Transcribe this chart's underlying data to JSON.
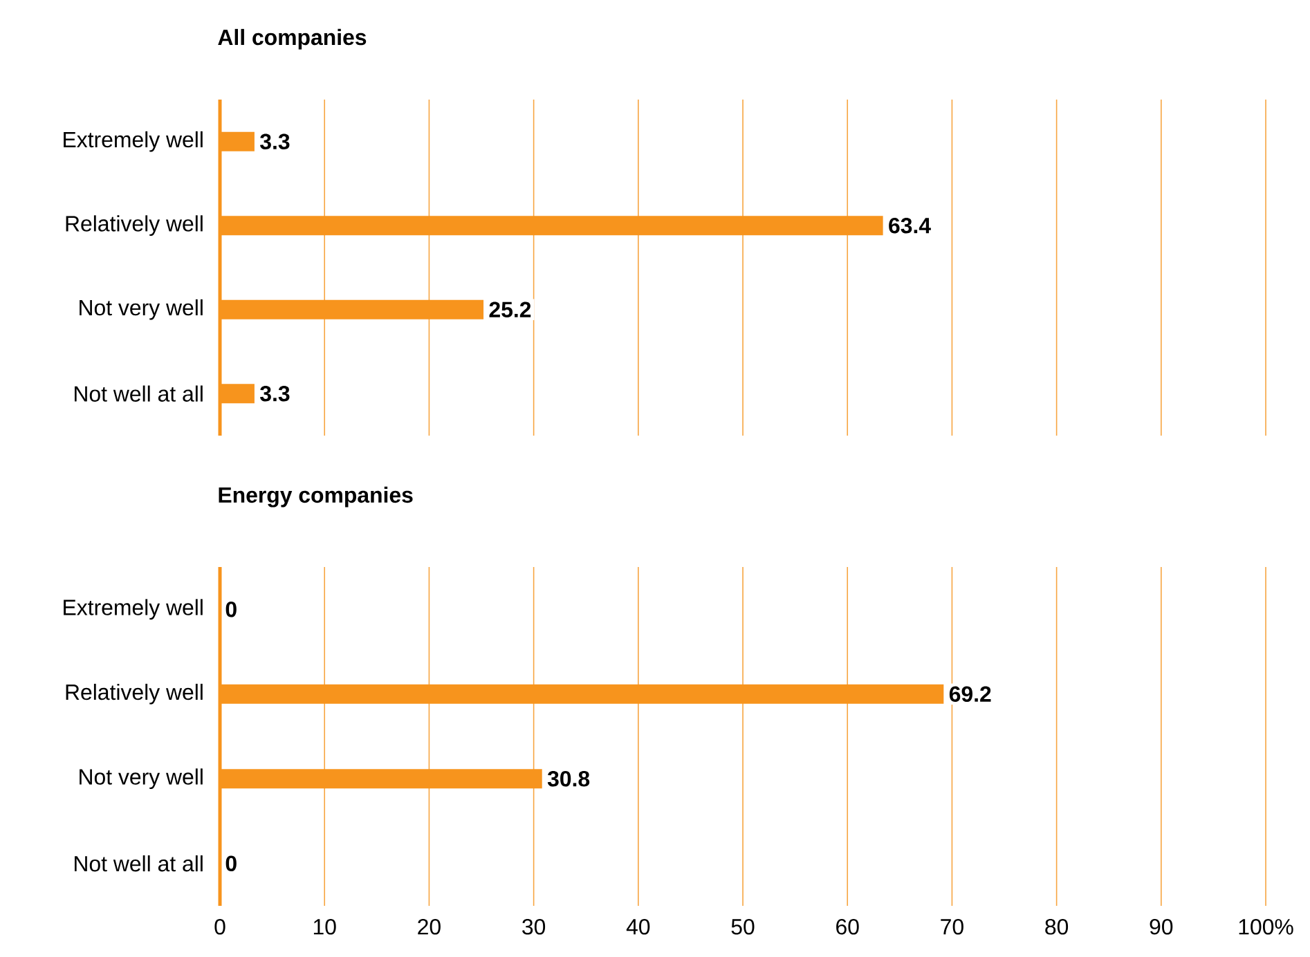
{
  "chart_data": [
    {
      "type": "bar",
      "orientation": "horizontal",
      "title": "All companies",
      "categories": [
        "Extremely well",
        "Relatively well",
        "Not very well",
        "Not well at all"
      ],
      "values": [
        3.3,
        63.4,
        25.2,
        3.3
      ],
      "color": "#f7941d",
      "data_labels": true,
      "xlim": [
        0,
        100
      ],
      "xticks": [
        0,
        10,
        20,
        30,
        40,
        50,
        60,
        70,
        80,
        90,
        100
      ],
      "grid": "x",
      "tick_labels": "y"
    },
    {
      "type": "bar",
      "orientation": "horizontal",
      "title": "Energy companies",
      "categories": [
        "Extremely well",
        "Relatively well",
        "Not very well",
        "Not well at all"
      ],
      "values": [
        0,
        69.2,
        30.8,
        0
      ],
      "color": "#f7941d",
      "data_labels": true,
      "xlim": [
        0,
        100
      ],
      "xticks": [
        0,
        10,
        20,
        30,
        40,
        50,
        60,
        70,
        80,
        90,
        {
          "value": 100,
          "label": "100%"
        }
      ],
      "grid": "x"
    }
  ]
}
